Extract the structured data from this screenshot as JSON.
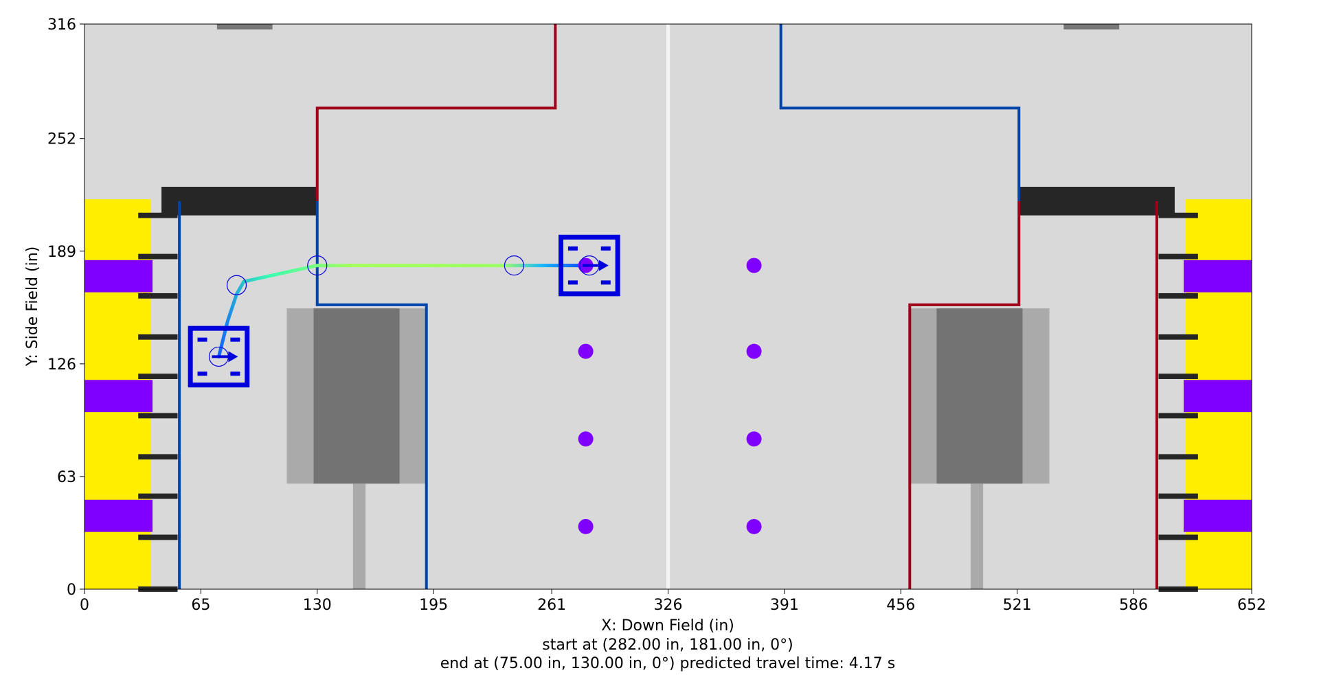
{
  "chart_data": {
    "type": "scatter",
    "title": "",
    "xlabel": "X: Down Field (in)",
    "ylabel": "Y: Side Field (in)",
    "xlim": [
      0,
      652
    ],
    "ylim": [
      0,
      316
    ],
    "xticks": [
      0,
      65,
      130,
      195,
      261,
      326,
      391,
      456,
      521,
      586,
      652
    ],
    "yticks": [
      0,
      63,
      126,
      189,
      252,
      316
    ],
    "grid": false,
    "caption_lines": [
      "start at (282.00 in, 181.00 in, 0°)",
      "end at (75.00 in, 130.00 in, 0°) predicted travel time: 4.17 s"
    ],
    "colors": {
      "field": "#d9d9d9",
      "wall": "#262626",
      "yellow_zone": "#ffee00",
      "purple_zone": "#8000ff",
      "red_line": "#a0001a",
      "blue_line": "#0044aa",
      "robot": "#0000dd",
      "ball": "#7f00ff",
      "center_line": "#f5f5f5"
    },
    "series": [
      {
        "name": "",
        "kind": "path",
        "x": [
          282,
          240,
          130,
          89,
          85,
          80,
          75
        ],
        "y": [
          181,
          181,
          181,
          172,
          165,
          150,
          130
        ]
      },
      {
        "name": "",
        "kind": "waypoints",
        "x": [
          75,
          85,
          130,
          240,
          282
        ],
        "y": [
          130,
          170,
          181,
          181,
          181
        ]
      },
      {
        "name": "",
        "kind": "game-pieces",
        "x": [
          280,
          280,
          280,
          280,
          374,
          374,
          374,
          374
        ],
        "y": [
          181,
          133,
          84,
          35,
          181,
          133,
          84,
          35
        ]
      }
    ],
    "robots": [
      {
        "x": 282,
        "y": 181,
        "heading": 0
      },
      {
        "x": 75,
        "y": 130,
        "heading": 0
      }
    ]
  }
}
